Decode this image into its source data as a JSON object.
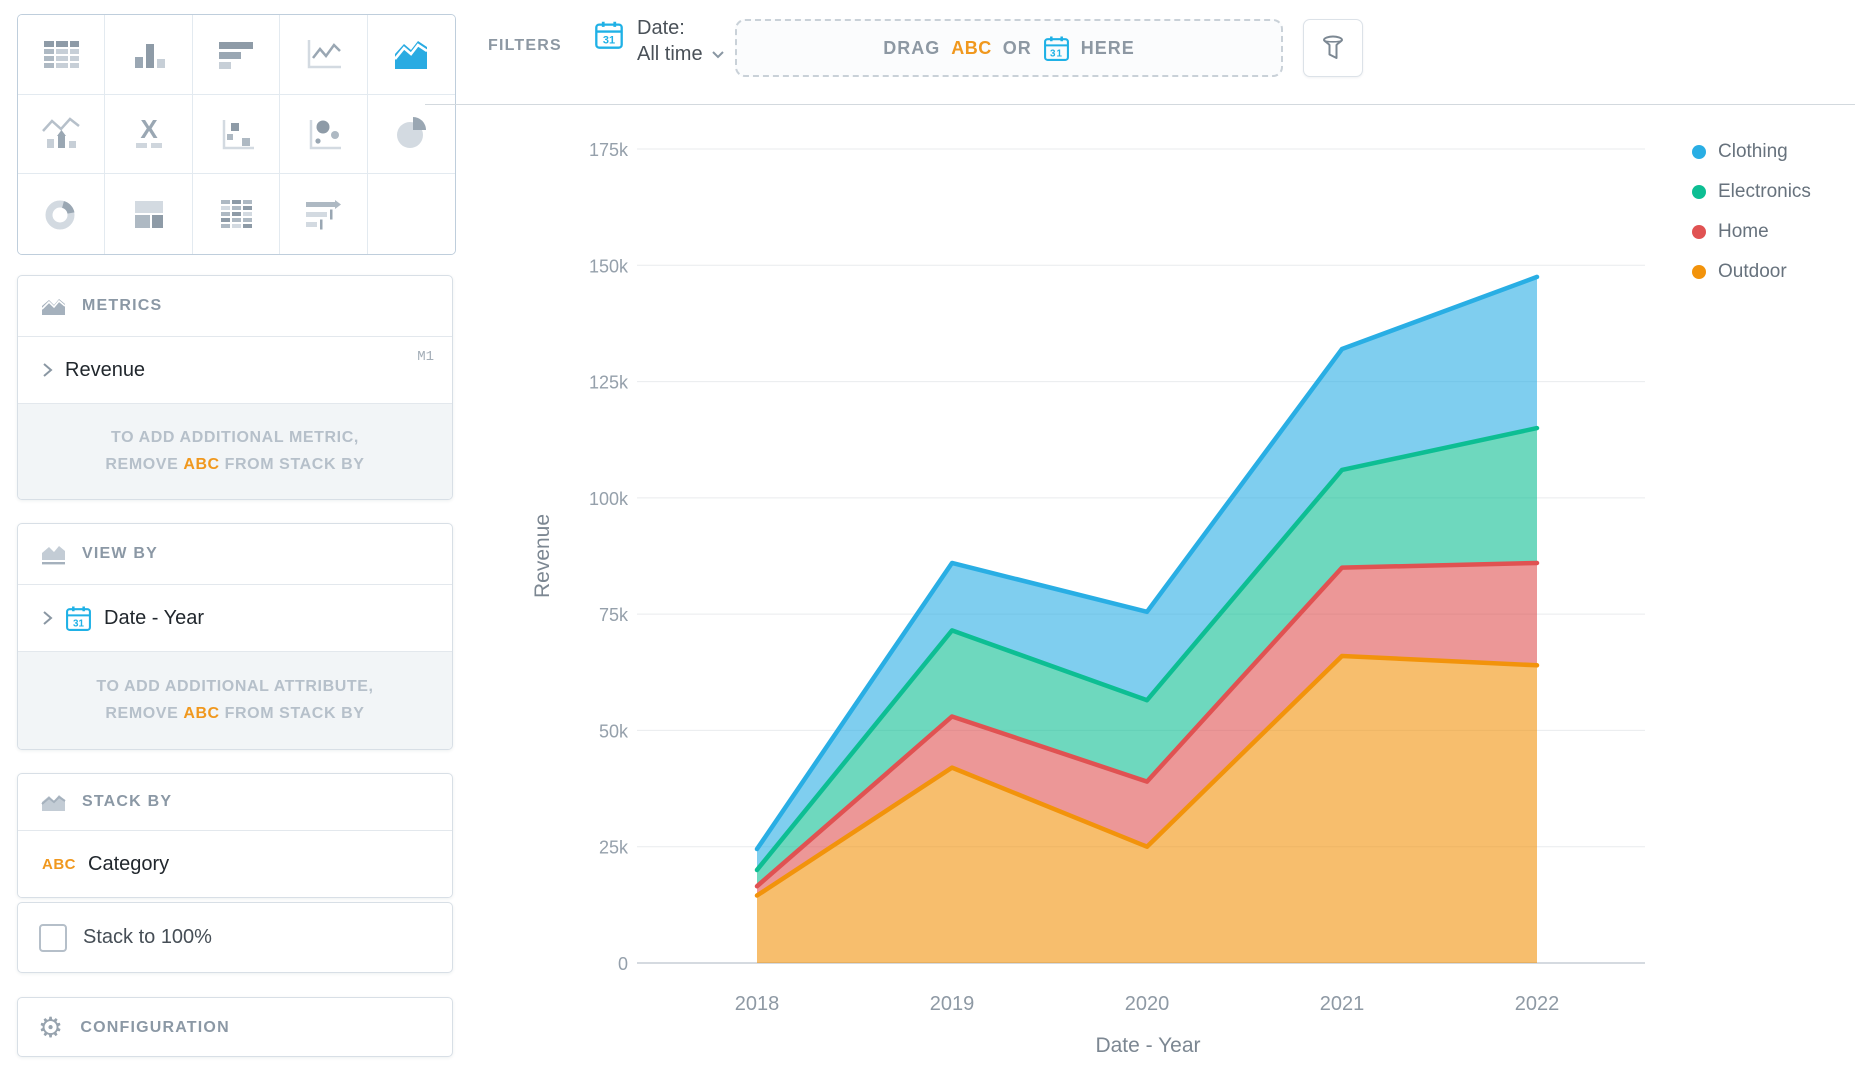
{
  "picker": {
    "selected": "area-chart",
    "icons": [
      {
        "name": "table"
      },
      {
        "name": "column-chart"
      },
      {
        "name": "bar-chart"
      },
      {
        "name": "line-chart"
      },
      {
        "name": "area-chart"
      },
      {
        "name": "combo-chart"
      },
      {
        "name": "headline"
      },
      {
        "name": "scatter-plot"
      },
      {
        "name": "bubble-chart"
      },
      {
        "name": "pie-chart"
      },
      {
        "name": "donut-chart"
      },
      {
        "name": "treemap"
      },
      {
        "name": "heatmap"
      },
      {
        "name": "bullet-chart"
      }
    ]
  },
  "filters_bar": {
    "label": "FILTERS",
    "date_filter": {
      "title": "Date:",
      "value": "All time"
    },
    "drop_zone": {
      "drag": "DRAG",
      "abc": "ABC",
      "or": "OR",
      "here": "HERE"
    },
    "calendar_icon_text": "31"
  },
  "metrics_panel": {
    "title": "METRICS",
    "item": {
      "label": "Revenue",
      "badge": "M1"
    },
    "hint": {
      "line1": "TO ADD ADDITIONAL METRIC,",
      "remove": "REMOVE",
      "abc": "ABC",
      "rest": "FROM STACK BY"
    }
  },
  "view_by_panel": {
    "title": "VIEW BY",
    "item": {
      "label": "Date - Year"
    },
    "hint": {
      "line1": "TO ADD ADDITIONAL ATTRIBUTE,",
      "remove": "REMOVE",
      "abc": "ABC",
      "rest": "FROM STACK BY"
    }
  },
  "stack_by_panel": {
    "title": "STACK BY",
    "item": {
      "tag": "ABC",
      "label": "Category"
    }
  },
  "stack_to_100": {
    "label": "Stack to 100%",
    "checked": false
  },
  "configuration_panel": {
    "title": "CONFIGURATION"
  },
  "colors": {
    "accent_blue": "#1FB1E6",
    "abc_orange": "#F0981E"
  },
  "chart_data": {
    "type": "area",
    "stacked": true,
    "title": "",
    "xlabel": "Date - Year",
    "ylabel": "Revenue",
    "categories": [
      "2018",
      "2019",
      "2020",
      "2021",
      "2022"
    ],
    "value_unit": "thousands",
    "series": [
      {
        "name": "Clothing",
        "color": "#29AEE4",
        "values": [
          4.5,
          14.5,
          19,
          26,
          32.5
        ]
      },
      {
        "name": "Electronics",
        "color": "#0DBE93",
        "values": [
          3.5,
          18.5,
          17.5,
          21,
          29
        ]
      },
      {
        "name": "Home",
        "color": "#E05252",
        "values": [
          2,
          11,
          14,
          19,
          22
        ]
      },
      {
        "name": "Outdoor",
        "color": "#F2930B",
        "values": [
          14.5,
          42,
          25,
          66,
          64
        ]
      }
    ],
    "stack_order_bottom_to_top": [
      "Outdoor",
      "Home",
      "Electronics",
      "Clothing"
    ],
    "cumulative_totals": [
      24.5,
      86,
      75.5,
      132,
      147.5
    ],
    "yticks": [
      0,
      25,
      50,
      75,
      100,
      125,
      150,
      175
    ],
    "ytick_labels": [
      "0",
      "25k",
      "50k",
      "75k",
      "100k",
      "125k",
      "150k",
      "175k"
    ],
    "ylim": [
      0,
      183
    ],
    "grid": true,
    "legend_position": "top-right"
  }
}
